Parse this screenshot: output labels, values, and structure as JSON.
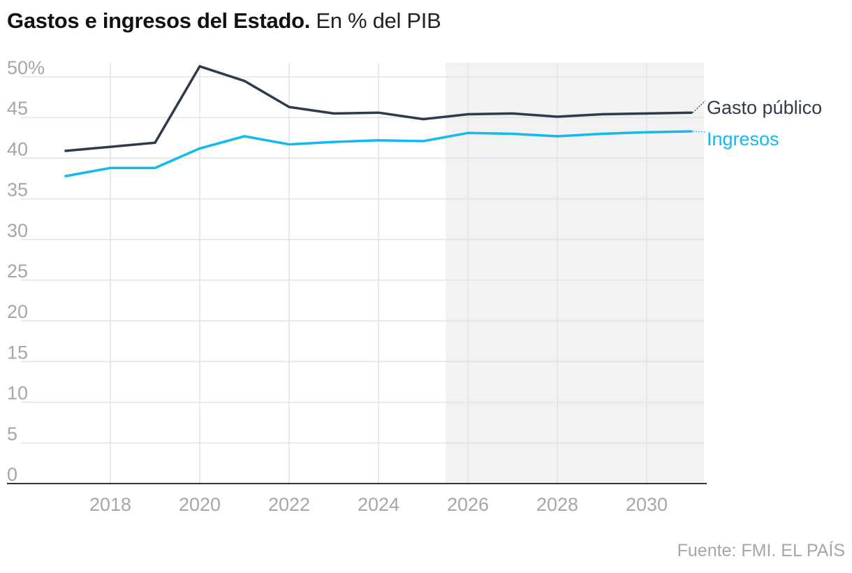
{
  "title": {
    "bold": "Gastos e ingresos del Estado.",
    "light": "En % del PIB"
  },
  "source": "Fuente: FMI. EL PAÍS",
  "chart_data": {
    "type": "line",
    "x": [
      2017,
      2018,
      2019,
      2020,
      2021,
      2022,
      2023,
      2024,
      2025,
      2026,
      2027,
      2028,
      2029,
      2030,
      2031
    ],
    "series": [
      {
        "name": "Gasto público",
        "color": "#2f3a4a",
        "values": [
          40.9,
          41.4,
          41.9,
          51.3,
          49.5,
          46.3,
          45.5,
          45.6,
          44.8,
          45.4,
          45.5,
          45.1,
          45.4,
          45.5,
          45.6
        ]
      },
      {
        "name": "Ingresos",
        "color": "#14b9f0",
        "values": [
          37.8,
          38.8,
          38.8,
          41.2,
          42.7,
          41.7,
          42.0,
          42.2,
          42.1,
          43.1,
          43.0,
          42.7,
          43.0,
          43.2,
          43.3
        ]
      }
    ],
    "y_ticks": [
      "0",
      "5",
      "10",
      "15",
      "20",
      "25",
      "30",
      "35",
      "40",
      "45",
      "50%"
    ],
    "x_ticks": [
      "2018",
      "2020",
      "2022",
      "2024",
      "2026",
      "2028",
      "2030"
    ],
    "ylim": [
      0,
      52
    ],
    "xlim": [
      2017,
      2031
    ],
    "forecast_shade_from": 2025.5,
    "grid": true,
    "legend": "inline-right",
    "colors": {
      "shade": "#f2f2f2",
      "grid": "#e3e3e3",
      "tick_text": "#a6a6a6",
      "axis": "#333333"
    }
  }
}
